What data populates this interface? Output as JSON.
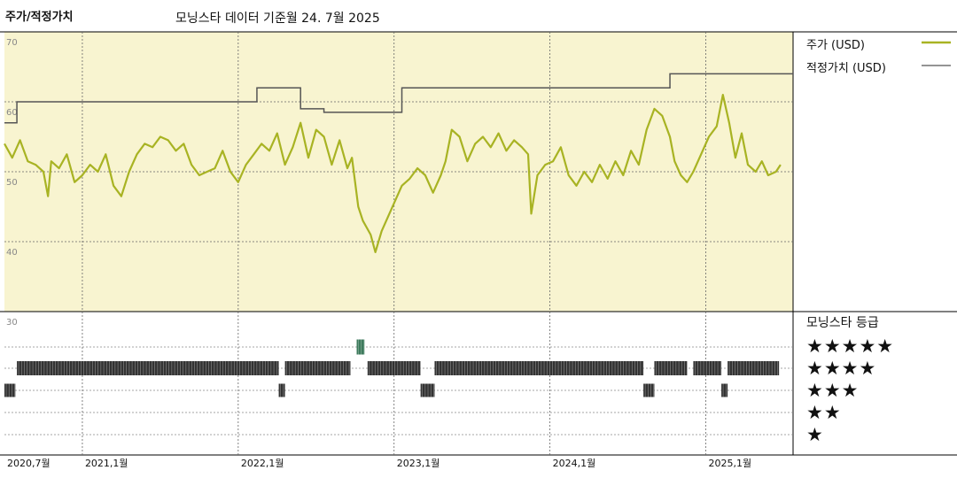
{
  "header": {
    "left_title": "주가/적정가치",
    "center_title": "모닝스타 데이터 기준월 24. 7월 2025"
  },
  "legend": {
    "price_label": "주가 (USD)",
    "fair_value_label": "적정가치 (USD)"
  },
  "rating_panel": {
    "title": "모닝스타 등급",
    "rows": [
      "★★★★★",
      "★★★★",
      "★★★",
      "★★",
      "★"
    ]
  },
  "colors": {
    "price_line": "#a8b323",
    "fair_value_line": "#555555",
    "upper_panel_bg": "#f8f4d0",
    "rating_bar": "#333333",
    "rating_bar_5star": "#3d7a5c"
  },
  "chart_data": {
    "type": "line",
    "x_axis": {
      "range": [
        "2020-07",
        "2025-07"
      ],
      "tick_labels": [
        {
          "label": "2020,7월",
          "t": 2020.5
        },
        {
          "label": "2021,1월",
          "t": 2021.0
        },
        {
          "label": "2022,1월",
          "t": 2022.0
        },
        {
          "label": "2023,1월",
          "t": 2023.0
        },
        {
          "label": "2024,1월",
          "t": 2024.0
        },
        {
          "label": "2025,1월",
          "t": 2025.0
        }
      ]
    },
    "y_axis": {
      "ylim": [
        30,
        70
      ],
      "tick_labels": [
        "70",
        "60",
        "50",
        "40",
        "30"
      ]
    },
    "series": [
      {
        "name": "주가 (USD)",
        "points": [
          [
            2020.5,
            54.0
          ],
          [
            2020.55,
            52.0
          ],
          [
            2020.6,
            54.5
          ],
          [
            2020.65,
            51.5
          ],
          [
            2020.7,
            51.0
          ],
          [
            2020.75,
            50.0
          ],
          [
            2020.78,
            46.5
          ],
          [
            2020.8,
            51.5
          ],
          [
            2020.85,
            50.5
          ],
          [
            2020.9,
            52.5
          ],
          [
            2020.95,
            48.5
          ],
          [
            2021.0,
            49.5
          ],
          [
            2021.05,
            51.0
          ],
          [
            2021.1,
            50.0
          ],
          [
            2021.15,
            52.5
          ],
          [
            2021.2,
            48.0
          ],
          [
            2021.25,
            46.5
          ],
          [
            2021.3,
            50.0
          ],
          [
            2021.35,
            52.5
          ],
          [
            2021.4,
            54.0
          ],
          [
            2021.45,
            53.5
          ],
          [
            2021.5,
            55.0
          ],
          [
            2021.55,
            54.5
          ],
          [
            2021.6,
            53.0
          ],
          [
            2021.65,
            54.0
          ],
          [
            2021.7,
            51.0
          ],
          [
            2021.75,
            49.5
          ],
          [
            2021.8,
            50.0
          ],
          [
            2021.85,
            50.5
          ],
          [
            2021.9,
            53.0
          ],
          [
            2021.95,
            50.0
          ],
          [
            2022.0,
            48.5
          ],
          [
            2022.05,
            51.0
          ],
          [
            2022.1,
            52.5
          ],
          [
            2022.15,
            54.0
          ],
          [
            2022.2,
            53.0
          ],
          [
            2022.25,
            55.5
          ],
          [
            2022.3,
            51.0
          ],
          [
            2022.35,
            53.5
          ],
          [
            2022.4,
            57.0
          ],
          [
            2022.45,
            52.0
          ],
          [
            2022.5,
            56.0
          ],
          [
            2022.55,
            55.0
          ],
          [
            2022.6,
            51.0
          ],
          [
            2022.65,
            54.5
          ],
          [
            2022.7,
            50.5
          ],
          [
            2022.73,
            52.0
          ],
          [
            2022.77,
            45.0
          ],
          [
            2022.8,
            43.0
          ],
          [
            2022.85,
            41.0
          ],
          [
            2022.88,
            38.5
          ],
          [
            2022.92,
            41.5
          ],
          [
            2022.96,
            43.5
          ],
          [
            2023.0,
            45.5
          ],
          [
            2023.05,
            48.0
          ],
          [
            2023.1,
            49.0
          ],
          [
            2023.15,
            50.5
          ],
          [
            2023.2,
            49.5
          ],
          [
            2023.25,
            47.0
          ],
          [
            2023.3,
            49.5
          ],
          [
            2023.33,
            51.5
          ],
          [
            2023.37,
            56.0
          ],
          [
            2023.42,
            55.0
          ],
          [
            2023.47,
            51.5
          ],
          [
            2023.52,
            54.0
          ],
          [
            2023.57,
            55.0
          ],
          [
            2023.62,
            53.5
          ],
          [
            2023.67,
            55.5
          ],
          [
            2023.72,
            53.0
          ],
          [
            2023.77,
            54.5
          ],
          [
            2023.82,
            53.5
          ],
          [
            2023.86,
            52.5
          ],
          [
            2023.88,
            44.0
          ],
          [
            2023.92,
            49.5
          ],
          [
            2023.97,
            51.0
          ],
          [
            2024.02,
            51.5
          ],
          [
            2024.07,
            53.5
          ],
          [
            2024.12,
            49.5
          ],
          [
            2024.17,
            48.0
          ],
          [
            2024.22,
            50.0
          ],
          [
            2024.27,
            48.5
          ],
          [
            2024.32,
            51.0
          ],
          [
            2024.37,
            49.0
          ],
          [
            2024.42,
            51.5
          ],
          [
            2024.47,
            49.5
          ],
          [
            2024.52,
            53.0
          ],
          [
            2024.57,
            51.0
          ],
          [
            2024.62,
            56.0
          ],
          [
            2024.67,
            59.0
          ],
          [
            2024.72,
            58.0
          ],
          [
            2024.77,
            55.0
          ],
          [
            2024.8,
            51.5
          ],
          [
            2024.84,
            49.5
          ],
          [
            2024.88,
            48.5
          ],
          [
            2024.92,
            50.0
          ],
          [
            2024.97,
            52.5
          ],
          [
            2025.02,
            55.0
          ],
          [
            2025.07,
            56.5
          ],
          [
            2025.11,
            61.0
          ],
          [
            2025.15,
            57.0
          ],
          [
            2025.19,
            52.0
          ],
          [
            2025.23,
            55.5
          ],
          [
            2025.27,
            51.0
          ],
          [
            2025.32,
            50.0
          ],
          [
            2025.36,
            51.5
          ],
          [
            2025.4,
            49.5
          ],
          [
            2025.45,
            50.0
          ],
          [
            2025.48,
            51.0
          ]
        ]
      },
      {
        "name": "적정가치 (USD)",
        "steps": [
          [
            2020.5,
            57.0
          ],
          [
            2020.58,
            60.0
          ],
          [
            2022.12,
            62.0
          ],
          [
            2022.4,
            59.0
          ],
          [
            2022.55,
            58.5
          ],
          [
            2023.05,
            62.0
          ],
          [
            2024.77,
            64.0
          ],
          [
            2025.56,
            64.0
          ]
        ]
      }
    ],
    "rating_segments": [
      {
        "stars": 5,
        "ranges": [
          [
            2022.76,
            2022.81
          ]
        ]
      },
      {
        "stars": 4,
        "ranges": [
          [
            2020.58,
            2022.26
          ],
          [
            2022.3,
            2022.72
          ],
          [
            2022.83,
            2023.17
          ],
          [
            2023.26,
            2024.6
          ],
          [
            2024.67,
            2024.88
          ],
          [
            2024.92,
            2025.1
          ],
          [
            2025.14,
            2025.47
          ]
        ]
      },
      {
        "stars": 3,
        "ranges": [
          [
            2020.5,
            2020.57
          ],
          [
            2022.26,
            2022.3
          ],
          [
            2023.17,
            2023.26
          ],
          [
            2024.6,
            2024.67
          ],
          [
            2025.1,
            2025.14
          ]
        ]
      }
    ]
  }
}
